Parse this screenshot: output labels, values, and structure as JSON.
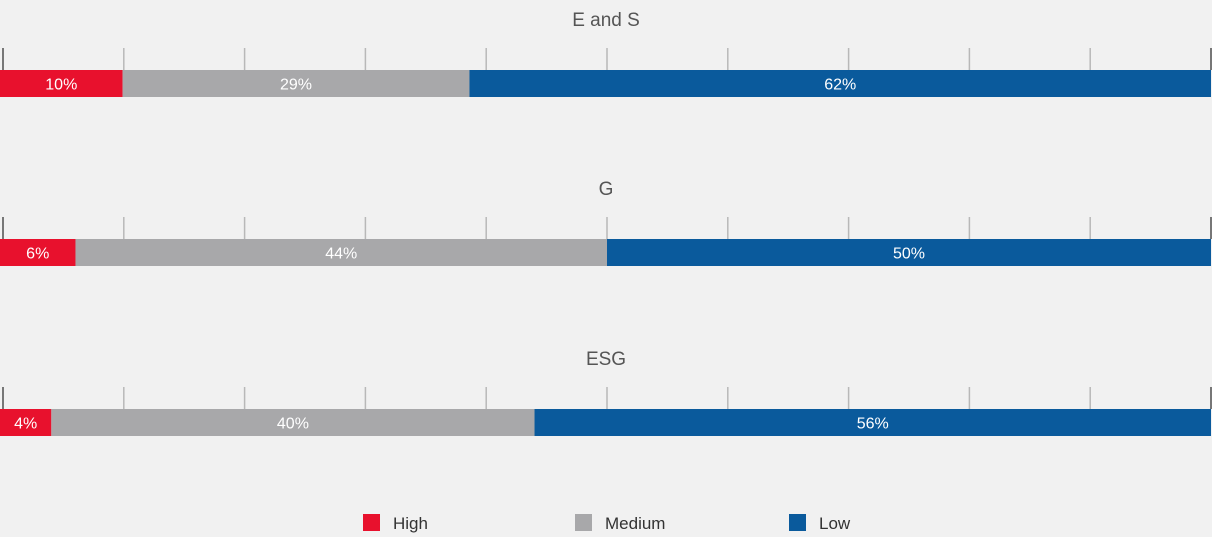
{
  "chart_data": {
    "type": "bar",
    "stacked": true,
    "orientation": "horizontal",
    "grid": false,
    "legend_position": "bottom",
    "xlim": [
      0,
      100
    ],
    "series": [
      {
        "name": "High",
        "color": "#e8112d"
      },
      {
        "name": "Medium",
        "color": "#a8a8aa"
      },
      {
        "name": "Low",
        "color": "#0a5a9c"
      }
    ],
    "panels": [
      {
        "title": "E and S",
        "values": [
          10,
          29,
          62
        ],
        "labels": [
          "10%",
          "29%",
          "62%"
        ]
      },
      {
        "title": "G",
        "values": [
          6,
          44,
          50
        ],
        "labels": [
          "6%",
          "44%",
          "50%"
        ]
      },
      {
        "title": "ESG",
        "values": [
          4,
          40,
          56
        ],
        "labels": [
          "4%",
          "40%",
          "56%"
        ]
      }
    ]
  },
  "colors": {
    "background": "#f1f1f1",
    "axis": "#b8b8b8",
    "title_text": "#555555",
    "bar_text": "#ffffff"
  }
}
